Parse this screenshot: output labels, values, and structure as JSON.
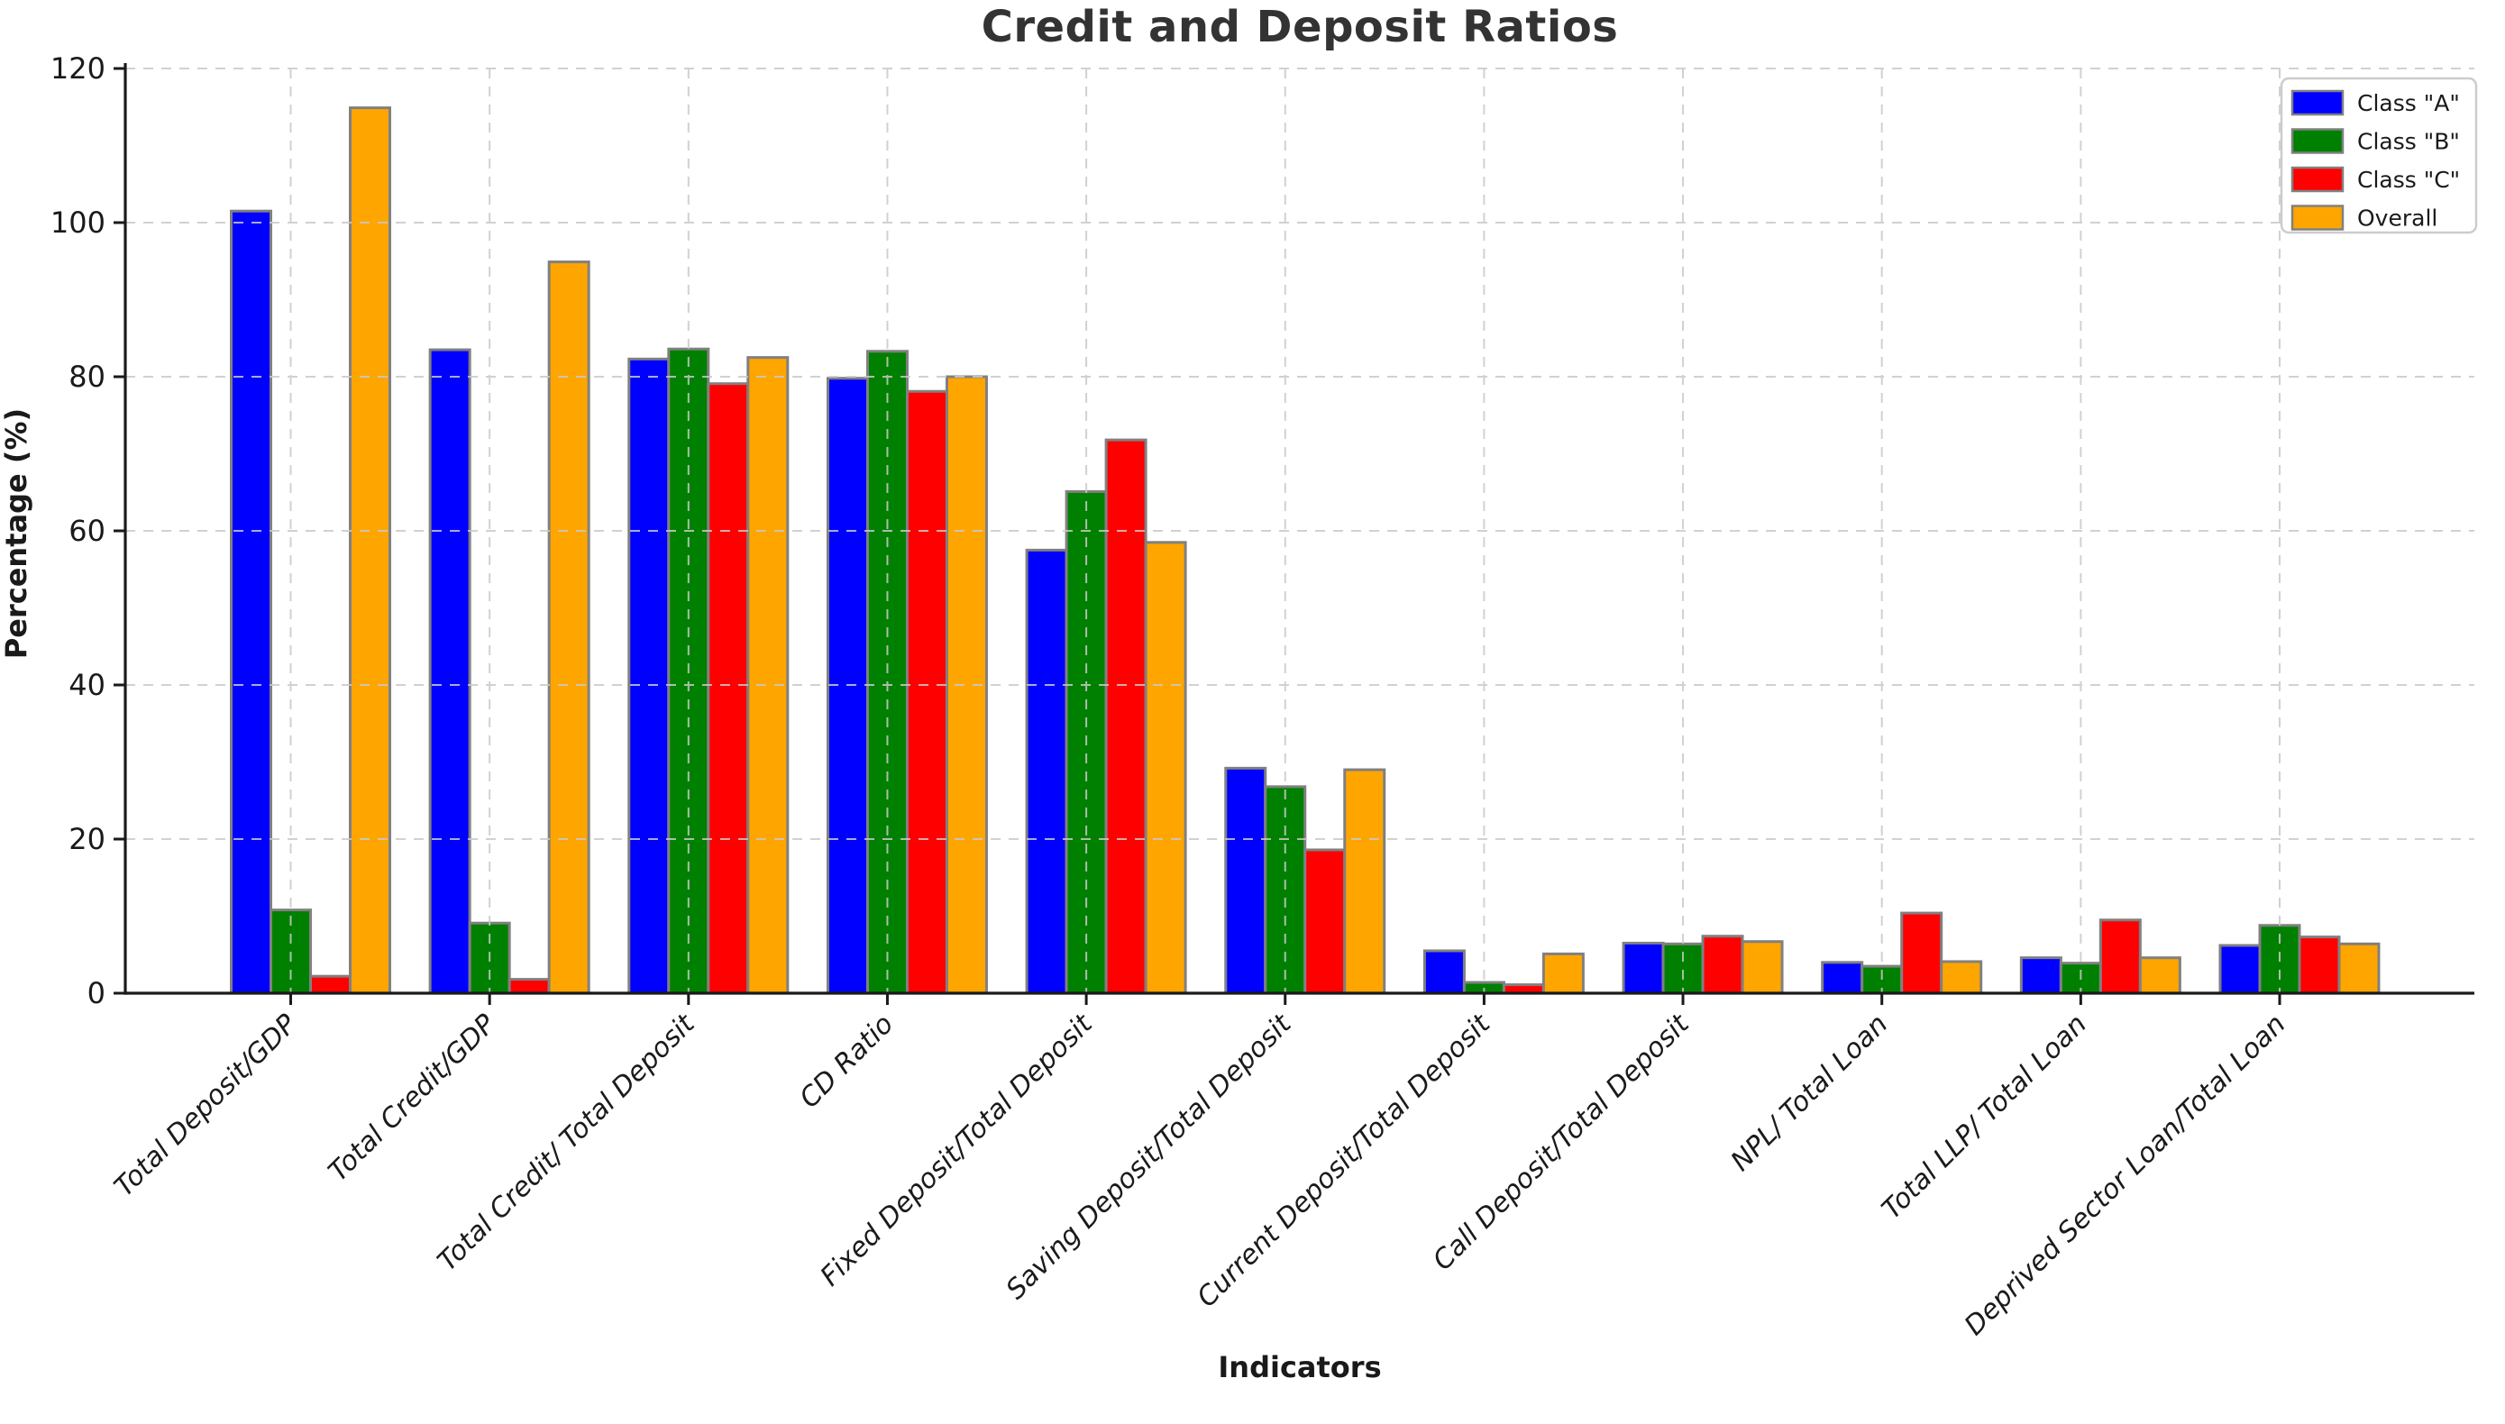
{
  "chart_data": {
    "type": "bar",
    "title": "Credit and Deposit Ratios",
    "xlabel": "Indicators",
    "ylabel": "Percentage (%)",
    "categories": [
      "Total Deposit/GDP",
      "Total Credit/GDP",
      "Total Credit/ Total Deposit",
      "CD Ratio",
      "Fixed Deposit/Total Deposit",
      "Saving Deposit/Total Deposit",
      "Current Deposit/Total Deposit",
      "Call Deposit/Total Deposit",
      "NPL/ Total Loan",
      "Total LLP/ Total Loan",
      "Deprived Sector Loan/Total Loan"
    ],
    "series": [
      {
        "name": "Class \"A\"",
        "color": "#0000FF",
        "values": [
          101.5,
          83.5,
          82.3,
          79.8,
          57.5,
          29.2,
          5.5,
          6.5,
          4.0,
          4.6,
          6.2
        ]
      },
      {
        "name": "Class \"B\"",
        "color": "#008000",
        "values": [
          10.8,
          9.1,
          83.6,
          83.3,
          65.1,
          26.8,
          1.4,
          6.4,
          3.5,
          3.9,
          8.8
        ]
      },
      {
        "name": "Class \"C\"",
        "color": "#FF0000",
        "values": [
          2.2,
          1.8,
          79.1,
          78.1,
          71.8,
          18.6,
          1.1,
          7.4,
          10.4,
          9.5,
          7.3
        ]
      },
      {
        "name": "Overall",
        "color": "#FFA500",
        "values": [
          114.9,
          94.9,
          82.5,
          80.0,
          58.5,
          29.0,
          5.1,
          6.7,
          4.1,
          4.6,
          6.4
        ]
      }
    ],
    "ylim": [
      0,
      120
    ],
    "yticks": [
      0,
      20,
      40,
      60,
      80,
      100,
      120
    ],
    "grid": true,
    "legend_position": "upper-right",
    "bar_edge_color": "#808080",
    "grid_color": "#c9c9c9",
    "axis_color": "#1a1a1a",
    "title_color": "#333333",
    "legend_border_color": "#cccccc"
  }
}
